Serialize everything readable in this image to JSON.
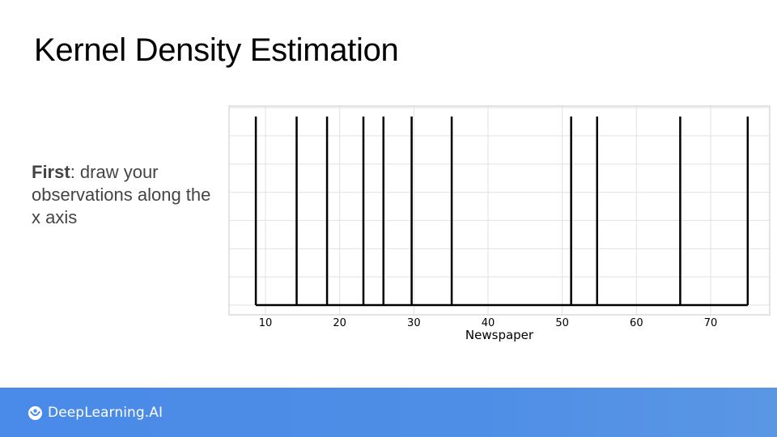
{
  "slide": {
    "title": "Kernel Density Estimation",
    "body_bold": "First",
    "body_rest": ": draw your observations along the x axis"
  },
  "footer": {
    "brand": "DeepLearning.AI",
    "brand_icon": "deeplearning-logo-icon",
    "background": "#4a8ae8"
  },
  "chart_data": {
    "type": "rug",
    "xlabel": "Newspaper",
    "ylabel": "",
    "x_ticks": [
      10,
      20,
      30,
      40,
      50,
      60,
      70
    ],
    "xlim": [
      5,
      77
    ],
    "observations": [
      8.7,
      14.2,
      18.3,
      23.2,
      25.9,
      29.7,
      35.1,
      51.2,
      54.7,
      65.9,
      75.0
    ],
    "grid": true,
    "line_color": "#000000"
  }
}
